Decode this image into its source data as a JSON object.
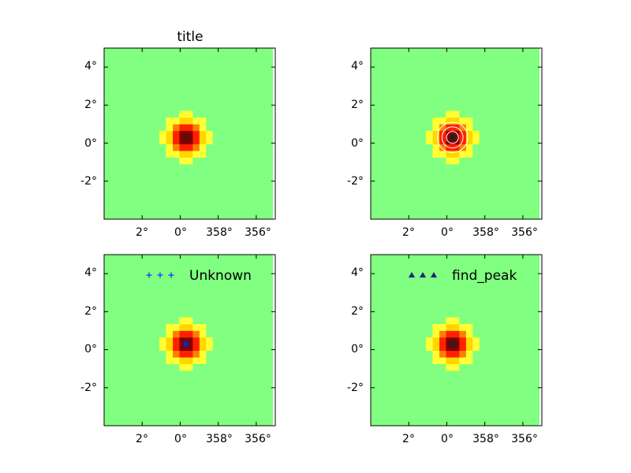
{
  "figure": {
    "colors": {
      "background": "#80ff80",
      "ramp": [
        "#80ff80",
        "#ffff33",
        "#ffd700",
        "#ff8000",
        "#ff2000",
        "#cc0000",
        "#800000"
      ],
      "frame": "#000000",
      "contour": "#ffffff",
      "plus_marker": "#1030ff",
      "triangle_marker": "#1a237e",
      "center_marker": "#222222"
    }
  },
  "chart_data": [
    {
      "type": "heatmap",
      "title": "title",
      "xlabel": "",
      "ylabel": "",
      "xticks": [
        "2°",
        "0°",
        "358°",
        "356°"
      ],
      "yticks": [
        "4°",
        "2°",
        "0°",
        "-2°"
      ],
      "xlim": [
        4,
        -5
      ],
      "ylim": [
        -4,
        5
      ],
      "grid": false,
      "source": {
        "center": [
          -0.3,
          0.3
        ],
        "peak": 1.0,
        "sigma": 0.55
      },
      "contours": [],
      "markers": [
        {
          "x": -0.3,
          "y": 0.3,
          "symbol": "dot-small"
        }
      ],
      "legend": null
    },
    {
      "type": "heatmap",
      "title": "",
      "xlabel": "",
      "ylabel": "",
      "xticks": [
        "2°",
        "0°",
        "358°",
        "356°"
      ],
      "yticks": [
        "4°",
        "2°",
        "0°",
        "-2°"
      ],
      "xlim": [
        4,
        -5
      ],
      "ylim": [
        -4,
        5
      ],
      "grid": false,
      "source": {
        "center": [
          -0.3,
          0.3
        ],
        "peak": 1.0,
        "sigma": 0.55
      },
      "contours": [
        0.35,
        0.6,
        0.85
      ],
      "markers": [
        {
          "x": -0.3,
          "y": 0.3,
          "symbol": "dot"
        }
      ],
      "legend": null
    },
    {
      "type": "heatmap",
      "title": "",
      "xlabel": "",
      "ylabel": "",
      "xticks": [
        "2°",
        "0°",
        "358°",
        "356°"
      ],
      "yticks": [
        "4°",
        "2°",
        "0°",
        "-2°"
      ],
      "xlim": [
        4,
        -5
      ],
      "ylim": [
        -4,
        5
      ],
      "grid": false,
      "source": {
        "center": [
          -0.3,
          0.3
        ],
        "peak": 1.0,
        "sigma": 0.55
      },
      "contours": [],
      "markers": [
        {
          "x": -0.3,
          "y": 0.3,
          "symbol": "dot-blue"
        }
      ],
      "legend": {
        "label": "Unknown",
        "symbol": "plus",
        "placement": "upper-right"
      }
    },
    {
      "type": "heatmap",
      "title": "",
      "xlabel": "",
      "ylabel": "",
      "xticks": [
        "2°",
        "0°",
        "358°",
        "356°"
      ],
      "yticks": [
        "4°",
        "2°",
        "0°",
        "-2°"
      ],
      "xlim": [
        4,
        -5
      ],
      "ylim": [
        -4,
        5
      ],
      "grid": false,
      "source": {
        "center": [
          -0.3,
          0.3
        ],
        "peak": 1.0,
        "sigma": 0.55
      },
      "contours": [],
      "markers": [
        {
          "x": -0.3,
          "y": 0.3,
          "symbol": "dot"
        }
      ],
      "legend": {
        "label": "find_peak",
        "symbol": "triangle",
        "placement": "upper-right"
      }
    }
  ]
}
